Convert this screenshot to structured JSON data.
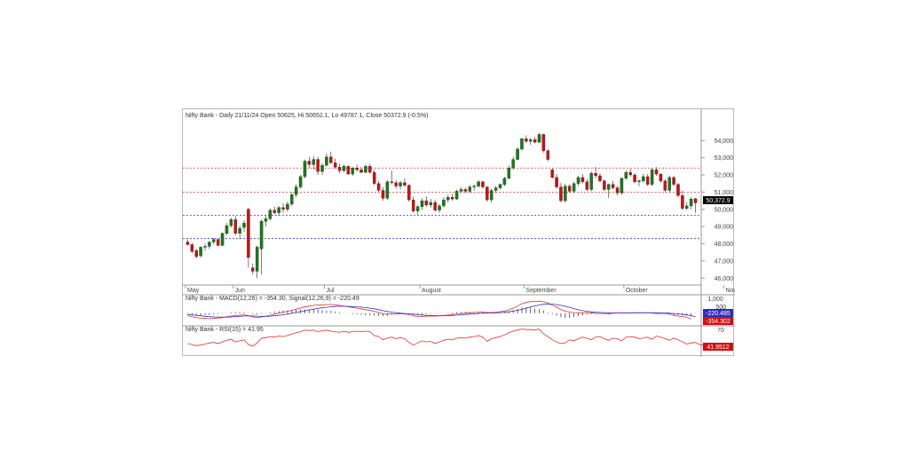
{
  "header": {
    "price_title": "Nifty Bank - Daily 21/11/24 Open 50625, Hi 50652.1, Lo 49787.1, Close 50372.9 (-0.5%)",
    "macd_title": "Nifty Bank - MACD(12,26) = -354.30, Signal(12,26,9) = -220.49",
    "rsi_title": "Nifty Bank - RSI(15) = 41.95"
  },
  "readouts": {
    "last_price": "50,372.9",
    "macd_signal": "-220.485",
    "macd_value": "-354.302",
    "rsi_value": "41.9512"
  },
  "colors": {
    "up": "#1a7a1a",
    "down": "#cc1111",
    "resistance": "#e03030",
    "support": "#3333cc",
    "macd_line": "#e03030",
    "signal_line": "#3333cc",
    "rsi_line": "#e03030"
  },
  "chart_data": [
    {
      "type": "candlestick",
      "title": "Nifty Bank - Daily 21/11/24 Open 50625, Hi 50652.1, Lo 49787.1, Close 50372.9 (-0.5%)",
      "ylim": [
        45600,
        55200
      ],
      "y_ticks": [
        "54,000",
        "53,000",
        "52,000",
        "51,000",
        "50,000",
        "49,000",
        "48,000",
        "47,000",
        "46,000"
      ],
      "x_ticks": [
        "May",
        "Jun",
        "Jul",
        "August",
        "September",
        "October",
        "November"
      ],
      "x_tick_index": [
        0,
        11,
        32,
        54,
        78,
        101,
        124
      ],
      "horizontal_levels": [
        {
          "value": 52400,
          "style": "dashed",
          "color": "resistance"
        },
        {
          "value": 51000,
          "style": "dashed",
          "color": "resistance"
        },
        {
          "value": 49650,
          "style": "dashed",
          "color": "support"
        },
        {
          "value": 48300,
          "style": "dashed",
          "color": "support"
        }
      ],
      "ohlc": [
        [
          48100,
          48250,
          47900,
          47950
        ],
        [
          47950,
          48050,
          47450,
          47550
        ],
        [
          47600,
          47700,
          47150,
          47250
        ],
        [
          47300,
          47850,
          47200,
          47800
        ],
        [
          47800,
          48000,
          47600,
          47850
        ],
        [
          47850,
          48150,
          47700,
          48100
        ],
        [
          48100,
          48350,
          47950,
          48250
        ],
        [
          48250,
          48300,
          47850,
          47900
        ],
        [
          47900,
          48650,
          47850,
          48600
        ],
        [
          48600,
          49200,
          48500,
          49050
        ],
        [
          49050,
          49500,
          48950,
          49400
        ],
        [
          49400,
          49600,
          48500,
          48600
        ],
        [
          48600,
          49050,
          48300,
          48900
        ],
        [
          48950,
          49350,
          48700,
          49200
        ],
        [
          50000,
          50100,
          46600,
          47200
        ],
        [
          46600,
          46850,
          46200,
          46400
        ],
        [
          46400,
          47900,
          46000,
          47800
        ],
        [
          47700,
          49400,
          46200,
          49300
        ],
        [
          49300,
          49650,
          49000,
          49450
        ],
        [
          49450,
          50050,
          49350,
          49950
        ],
        [
          49950,
          50150,
          49700,
          49800
        ],
        [
          49800,
          50200,
          49650,
          50100
        ],
        [
          50100,
          50350,
          49800,
          50000
        ],
        [
          50000,
          50450,
          49850,
          50300
        ],
        [
          50300,
          51000,
          50200,
          50850
        ],
        [
          50850,
          51450,
          50700,
          51300
        ],
        [
          51300,
          52000,
          51200,
          51900
        ],
        [
          51900,
          52900,
          51800,
          52800
        ],
        [
          52800,
          53050,
          52400,
          52600
        ],
        [
          52600,
          53100,
          52300,
          52900
        ],
        [
          52900,
          53050,
          52000,
          52200
        ],
        [
          52200,
          52700,
          52000,
          52550
        ],
        [
          52550,
          53250,
          52500,
          53050
        ],
        [
          53050,
          53350,
          52650,
          52700
        ],
        [
          52700,
          52950,
          52350,
          52450
        ],
        [
          52450,
          52650,
          52100,
          52250
        ],
        [
          52250,
          52600,
          52150,
          52500
        ],
        [
          52500,
          52550,
          52000,
          52050
        ],
        [
          52050,
          52450,
          51950,
          52400
        ],
        [
          52400,
          52600,
          52200,
          52300
        ],
        [
          52300,
          52450,
          52100,
          52150
        ],
        [
          52150,
          52600,
          52100,
          52500
        ],
        [
          52500,
          52650,
          52100,
          52150
        ],
        [
          52150,
          52300,
          51400,
          51500
        ],
        [
          51500,
          51650,
          51000,
          51100
        ],
        [
          51100,
          51300,
          50500,
          50650
        ],
        [
          50650,
          51700,
          50550,
          51600
        ],
        [
          51600,
          52250,
          51450,
          51550
        ],
        [
          51550,
          51700,
          51200,
          51350
        ],
        [
          51350,
          51650,
          51150,
          51550
        ],
        [
          51550,
          51800,
          51300,
          51400
        ],
        [
          51400,
          51450,
          50450,
          50550
        ],
        [
          50550,
          50750,
          49800,
          49900
        ],
        [
          49900,
          50250,
          49700,
          50150
        ],
        [
          50150,
          50650,
          49950,
          50500
        ],
        [
          50500,
          50750,
          50150,
          50250
        ],
        [
          50250,
          50600,
          50100,
          50400
        ],
        [
          50400,
          50550,
          49850,
          49950
        ],
        [
          49950,
          50300,
          49800,
          50200
        ],
        [
          50200,
          50700,
          50100,
          50550
        ],
        [
          50550,
          50850,
          50400,
          50700
        ],
        [
          50700,
          50900,
          50500,
          50600
        ],
        [
          50600,
          51150,
          50550,
          51050
        ],
        [
          51050,
          51300,
          50950,
          51150
        ],
        [
          51150,
          51250,
          50950,
          51050
        ],
        [
          51050,
          51400,
          50950,
          51300
        ],
        [
          51300,
          51450,
          51100,
          51350
        ],
        [
          51350,
          51700,
          51250,
          51600
        ],
        [
          51600,
          51650,
          51200,
          51300
        ],
        [
          51300,
          51350,
          50450,
          50550
        ],
        [
          50550,
          51200,
          50400,
          51100
        ],
        [
          51100,
          51350,
          50950,
          51250
        ],
        [
          51250,
          51500,
          51150,
          51450
        ],
        [
          51450,
          51900,
          51350,
          51800
        ],
        [
          51800,
          52550,
          51750,
          52400
        ],
        [
          52400,
          53050,
          52300,
          52900
        ],
        [
          52900,
          53600,
          52850,
          53500
        ],
        [
          53500,
          54150,
          53400,
          54100
        ],
        [
          54100,
          54300,
          53850,
          53950
        ],
        [
          53950,
          54150,
          53750,
          54050
        ],
        [
          54050,
          54200,
          53850,
          53900
        ],
        [
          53900,
          54450,
          53850,
          54350
        ],
        [
          54350,
          54400,
          53300,
          53400
        ],
        [
          53400,
          53500,
          52800,
          52900
        ],
        [
          52300,
          52400,
          51800,
          51850
        ],
        [
          51850,
          52050,
          51200,
          51300
        ],
        [
          51300,
          51550,
          50400,
          50500
        ],
        [
          50500,
          51500,
          50400,
          51350
        ],
        [
          51350,
          51450,
          50950,
          51050
        ],
        [
          51050,
          51600,
          50950,
          51500
        ],
        [
          51500,
          51950,
          51350,
          51850
        ],
        [
          51850,
          52050,
          51500,
          51600
        ],
        [
          51600,
          51750,
          51050,
          51150
        ],
        [
          51150,
          52200,
          51050,
          52100
        ],
        [
          52100,
          52450,
          51800,
          51950
        ],
        [
          51950,
          52100,
          51550,
          51650
        ],
        [
          51650,
          51750,
          51050,
          51150
        ],
        [
          51150,
          51500,
          50650,
          51450
        ],
        [
          51450,
          51650,
          51150,
          51250
        ],
        [
          51250,
          51350,
          50800,
          50950
        ],
        [
          50950,
          51850,
          50850,
          51800
        ],
        [
          51800,
          52250,
          51700,
          52150
        ],
        [
          52150,
          52350,
          51900,
          52000
        ],
        [
          52000,
          52100,
          51500,
          51600
        ],
        [
          51600,
          51750,
          51350,
          51650
        ],
        [
          51650,
          52050,
          51550,
          51900
        ],
        [
          51900,
          52050,
          51350,
          51450
        ],
        [
          51450,
          52400,
          51350,
          52300
        ],
        [
          52300,
          52450,
          51950,
          52050
        ],
        [
          52050,
          52100,
          51550,
          51650
        ],
        [
          51650,
          51750,
          51000,
          51100
        ],
        [
          51100,
          51950,
          51000,
          51850
        ],
        [
          51850,
          51950,
          51350,
          51450
        ],
        [
          51450,
          51550,
          50700,
          50800
        ],
        [
          50800,
          51100,
          49950,
          50050
        ],
        [
          50050,
          50400,
          49950,
          50200
        ],
        [
          50200,
          50700,
          50000,
          50600
        ],
        [
          50625,
          50652.1,
          49787.1,
          50372.9
        ]
      ]
    },
    {
      "type": "line",
      "title": "Nifty Bank - MACD(12,26) = -354.30, Signal(12,26,9) = -220.49",
      "y_ticks": [
        "1,000",
        "500"
      ],
      "ylim": [
        -600,
        1100
      ],
      "series": [
        {
          "name": "MACD(12,26)",
          "color": "macd_line",
          "values": [
            -150,
            -210,
            -260,
            -300,
            -320,
            -330,
            -320,
            -300,
            -260,
            -220,
            -180,
            -140,
            -120,
            -100,
            -150,
            -220,
            -260,
            -230,
            -180,
            -120,
            -60,
            0,
            60,
            110,
            170,
            240,
            310,
            370,
            420,
            460,
            490,
            500,
            510,
            520,
            500,
            460,
            420,
            380,
            340,
            300,
            260,
            210,
            160,
            110,
            40,
            -40,
            -60,
            -40,
            -40,
            -30,
            -40,
            -90,
            -160,
            -200,
            -200,
            -180,
            -170,
            -180,
            -170,
            -140,
            -110,
            -80,
            -50,
            -20,
            0,
            20,
            40,
            60,
            70,
            40,
            40,
            60,
            90,
            130,
            200,
            300,
            420,
            560,
            640,
            690,
            700,
            720,
            680,
            600,
            480,
            360,
            220,
            120,
            60,
            30,
            20,
            20,
            30,
            20,
            -10,
            -20,
            -20,
            -40,
            -10,
            20,
            30,
            20,
            20,
            30,
            10,
            30,
            30,
            10,
            -20,
            -10,
            -20,
            -60,
            -130,
            -180,
            -200,
            -250,
            -354.3
          ]
        },
        {
          "name": "Signal(12,26,9)",
          "color": "signal_line",
          "values": [
            -80,
            -100,
            -130,
            -160,
            -190,
            -210,
            -230,
            -240,
            -240,
            -240,
            -230,
            -210,
            -190,
            -170,
            -165,
            -170,
            -180,
            -190,
            -190,
            -180,
            -160,
            -130,
            -95,
            -55,
            -10,
            40,
            90,
            140,
            190,
            240,
            280,
            320,
            350,
            380,
            400,
            410,
            410,
            405,
            395,
            380,
            360,
            335,
            300,
            260,
            210,
            150,
            100,
            60,
            30,
            0,
            -20,
            -40,
            -60,
            -90,
            -110,
            -130,
            -140,
            -150,
            -155,
            -150,
            -145,
            -135,
            -120,
            -100,
            -80,
            -60,
            -40,
            -25,
            -10,
            0,
            10,
            20,
            30,
            50,
            80,
            120,
            170,
            230,
            300,
            370,
            430,
            490,
            530,
            550,
            540,
            510,
            470,
            410,
            340,
            270,
            200,
            150,
            110,
            80,
            60,
            45,
            30,
            20,
            15,
            15,
            15,
            15,
            15,
            20,
            20,
            20,
            20,
            20,
            20,
            15,
            10,
            0,
            -20,
            -50,
            -80,
            -110,
            -150,
            -220.49
          ]
        }
      ]
    },
    {
      "type": "line",
      "title": "Nifty Bank - RSI(15) = 41.95",
      "y_ticks": [
        "70"
      ],
      "ylim": [
        25,
        78
      ],
      "series": [
        {
          "name": "RSI(15)",
          "color": "rsi_line",
          "values": [
            45,
            43,
            41,
            42,
            44,
            46,
            47,
            45,
            48,
            51,
            53,
            48,
            50,
            52,
            43,
            40,
            46,
            55,
            56,
            58,
            57,
            59,
            58,
            60,
            63,
            65,
            67,
            70,
            69,
            70,
            67,
            69,
            70,
            68,
            67,
            66,
            68,
            66,
            67,
            68,
            67,
            68,
            67,
            60,
            58,
            52,
            55,
            57,
            54,
            56,
            54,
            47,
            42,
            46,
            50,
            48,
            49,
            45,
            48,
            51,
            53,
            52,
            55,
            56,
            55,
            57,
            58,
            60,
            57,
            49,
            54,
            56,
            58,
            61,
            65,
            68,
            70,
            72,
            71,
            71,
            70,
            72,
            63,
            58,
            52,
            48,
            45,
            46,
            52,
            50,
            54,
            57,
            55,
            52,
            57,
            58,
            54,
            51,
            55,
            54,
            50,
            57,
            58,
            57,
            54,
            55,
            57,
            53,
            59,
            57,
            54,
            51,
            55,
            52,
            48,
            44,
            46,
            47,
            43,
            41.95
          ]
        }
      ]
    }
  ]
}
